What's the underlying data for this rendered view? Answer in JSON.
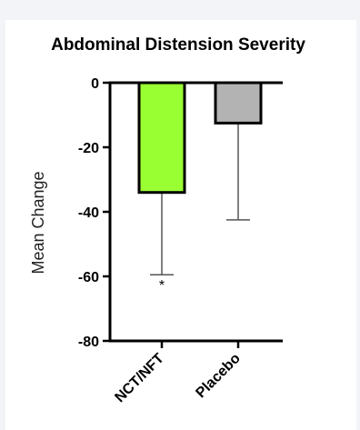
{
  "chart_data": {
    "type": "bar",
    "title": "Abdominal Distension Severity",
    "xlabel": "",
    "ylabel": "Mean Change",
    "categories": [
      "NCT/NFT",
      "Placebo"
    ],
    "values": [
      -34,
      -12.5
    ],
    "error_lower": [
      -59.5,
      -42.5
    ],
    "bar_colors": [
      "#99ff33",
      "#b3b3b3"
    ],
    "annotations": [
      {
        "category": "NCT/NFT",
        "text": "*"
      }
    ],
    "ylim": [
      -80,
      0
    ],
    "yticks": [
      0,
      -20,
      -40,
      -60,
      -80
    ],
    "ytick_labels": [
      "0",
      "-20",
      "-40",
      "-60",
      "-80"
    ],
    "grid": false,
    "legend": "none"
  },
  "colors": {
    "outer_background": "#f3f4f7",
    "panel_background": "#ffffff",
    "axis": "#000000",
    "error_bar": "#555555"
  }
}
